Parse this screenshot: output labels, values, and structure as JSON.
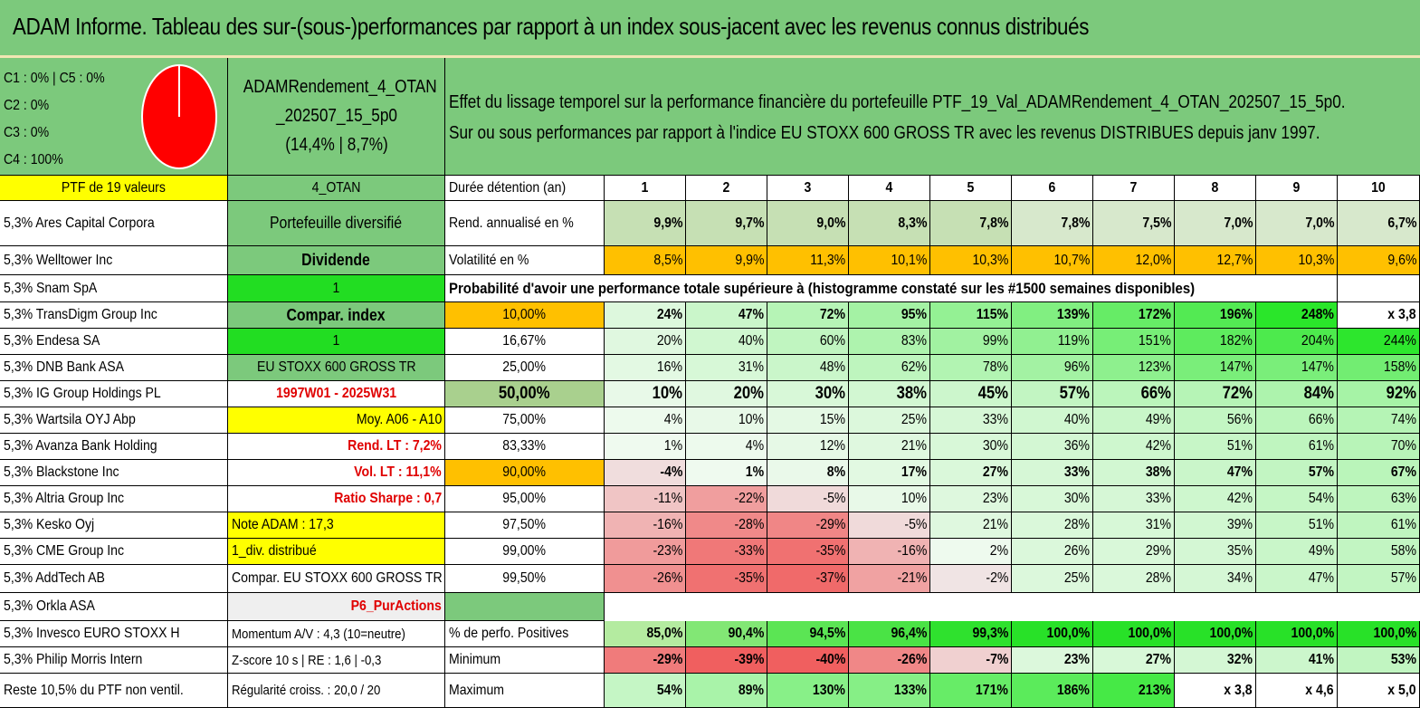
{
  "title": "ADAM Informe. Tableau des sur-(sous-)performances par rapport à un index sous-jacent avec les revenus connus distribués",
  "legend": [
    "C1 : 0% | C5 : 0%",
    "C2 : 0%",
    "C3 : 0%",
    "C4 : 100%"
  ],
  "pie_color": "#ff0000",
  "portfolio": {
    "name_line1": "ADAMRendement_4_OTAN",
    "name_line2": "_202507_15_5p0",
    "name_line3": "(14,4% | 8,7%)"
  },
  "description": {
    "line1": "Effet du lissage temporel sur la performance financière du portefeuille PTF_19_Val_ADAMRendement_4_OTAN_202507_15_5p0.",
    "line2": "Sur ou sous performances par rapport à l'indice EU STOXX 600 GROSS TR avec les revenus DISTRIBUES depuis janv 1997."
  },
  "holdings_header": "PTF de 19 valeurs",
  "holdings": [
    "5,3% Ares Capital Corpora",
    "5,3% Welltower Inc",
    "5,3% Snam SpA",
    "5,3% TransDigm Group Inc",
    "5,3% Endesa SA",
    "5,3% DNB Bank ASA",
    "5,3% IG Group Holdings PL",
    "5,3% Wartsila OYJ Abp",
    "5,3% Avanza Bank Holding",
    "5,3% Blackstone Inc",
    "5,3% Altria Group Inc",
    "5,3% Kesko Oyj",
    "5,3% CME Group Inc",
    "5,3% AddTech AB",
    "5,3% Orkla ASA",
    "5,3% Invesco EURO STOXX H",
    "5,3% Philip Morris Intern",
    "Reste 10,5% du PTF non ventil."
  ],
  "params": [
    "4_OTAN",
    "Portefeuille diversifié",
    "Dividende",
    "1",
    "Compar. index",
    "1",
    "EU STOXX 600 GROSS TR",
    "1997W01 - 2025W31",
    "Moy. A06 - A10",
    "Rend. LT : 7,2%",
    "Vol. LT : 11,1%",
    "Ratio Sharpe : 0,7",
    "Note ADAM : 17,3",
    "1_div. distribué",
    "Compar. EU STOXX 600 GROSS TR",
    "P6_PurActions",
    "Momentum A/V : 4,3 (10=neutre)",
    "Z-score 10 s | RE : 1,6 | -0,3",
    "Régularité croiss. : 20,0 / 20"
  ],
  "table": {
    "duration_label": "Durée détention (an)",
    "years": [
      "1",
      "2",
      "3",
      "4",
      "5",
      "6",
      "7",
      "8",
      "9",
      "10"
    ],
    "return_label": "Rend. annualisé en %",
    "returns": [
      "9,9%",
      "9,7%",
      "9,0%",
      "8,3%",
      "7,8%",
      "7,8%",
      "7,5%",
      "7,0%",
      "7,0%",
      "6,7%"
    ],
    "vol_label": "Volatilité en %",
    "vols": [
      "8,5%",
      "9,9%",
      "11,3%",
      "10,1%",
      "10,3%",
      "10,7%",
      "12,0%",
      "12,7%",
      "10,3%",
      "9,6%"
    ],
    "prob_label": "Probabilité d'avoir une performance totale supérieure à (histogramme constaté sur les #1500 semaines disponibles)",
    "prob_rows": [
      {
        "p": "10,00%",
        "v": [
          "24%",
          "47%",
          "72%",
          "95%",
          "115%",
          "139%",
          "172%",
          "196%",
          "248%",
          "x 3,8"
        ]
      },
      {
        "p": "16,67%",
        "v": [
          "20%",
          "40%",
          "60%",
          "83%",
          "99%",
          "119%",
          "151%",
          "182%",
          "204%",
          "244%"
        ]
      },
      {
        "p": "25,00%",
        "v": [
          "16%",
          "31%",
          "48%",
          "62%",
          "78%",
          "96%",
          "123%",
          "147%",
          "147%",
          "158%"
        ]
      },
      {
        "p": "50,00%",
        "v": [
          "10%",
          "20%",
          "30%",
          "38%",
          "45%",
          "57%",
          "66%",
          "72%",
          "84%",
          "92%"
        ]
      },
      {
        "p": "75,00%",
        "v": [
          "4%",
          "10%",
          "15%",
          "25%",
          "33%",
          "40%",
          "49%",
          "56%",
          "66%",
          "74%"
        ]
      },
      {
        "p": "83,33%",
        "v": [
          "1%",
          "4%",
          "12%",
          "21%",
          "30%",
          "36%",
          "42%",
          "51%",
          "61%",
          "70%"
        ]
      },
      {
        "p": "90,00%",
        "v": [
          "-4%",
          "1%",
          "8%",
          "17%",
          "27%",
          "33%",
          "38%",
          "47%",
          "57%",
          "67%"
        ]
      },
      {
        "p": "95,00%",
        "v": [
          "-11%",
          "-22%",
          "-5%",
          "10%",
          "23%",
          "30%",
          "33%",
          "42%",
          "54%",
          "63%"
        ]
      },
      {
        "p": "97,50%",
        "v": [
          "-16%",
          "-28%",
          "-29%",
          "-5%",
          "21%",
          "28%",
          "31%",
          "39%",
          "51%",
          "61%"
        ]
      },
      {
        "p": "99,00%",
        "v": [
          "-23%",
          "-33%",
          "-35%",
          "-16%",
          "2%",
          "26%",
          "29%",
          "35%",
          "49%",
          "58%"
        ]
      },
      {
        "p": "99,50%",
        "v": [
          "-26%",
          "-35%",
          "-37%",
          "-21%",
          "-2%",
          "25%",
          "28%",
          "34%",
          "47%",
          "57%"
        ]
      }
    ],
    "pos_label": "% de perfo. Positives",
    "pos": [
      "85,0%",
      "90,4%",
      "94,5%",
      "96,4%",
      "99,3%",
      "100,0%",
      "100,0%",
      "100,0%",
      "100,0%",
      "100,0%"
    ],
    "min_label": "Minimum",
    "mins": [
      "-29%",
      "-39%",
      "-40%",
      "-26%",
      "-7%",
      "23%",
      "27%",
      "32%",
      "41%",
      "53%"
    ],
    "max_label": "Maximum",
    "maxs": [
      "54%",
      "89%",
      "130%",
      "133%",
      "171%",
      "186%",
      "213%",
      "x 3,8",
      "x 4,6",
      "x 5,0"
    ]
  }
}
